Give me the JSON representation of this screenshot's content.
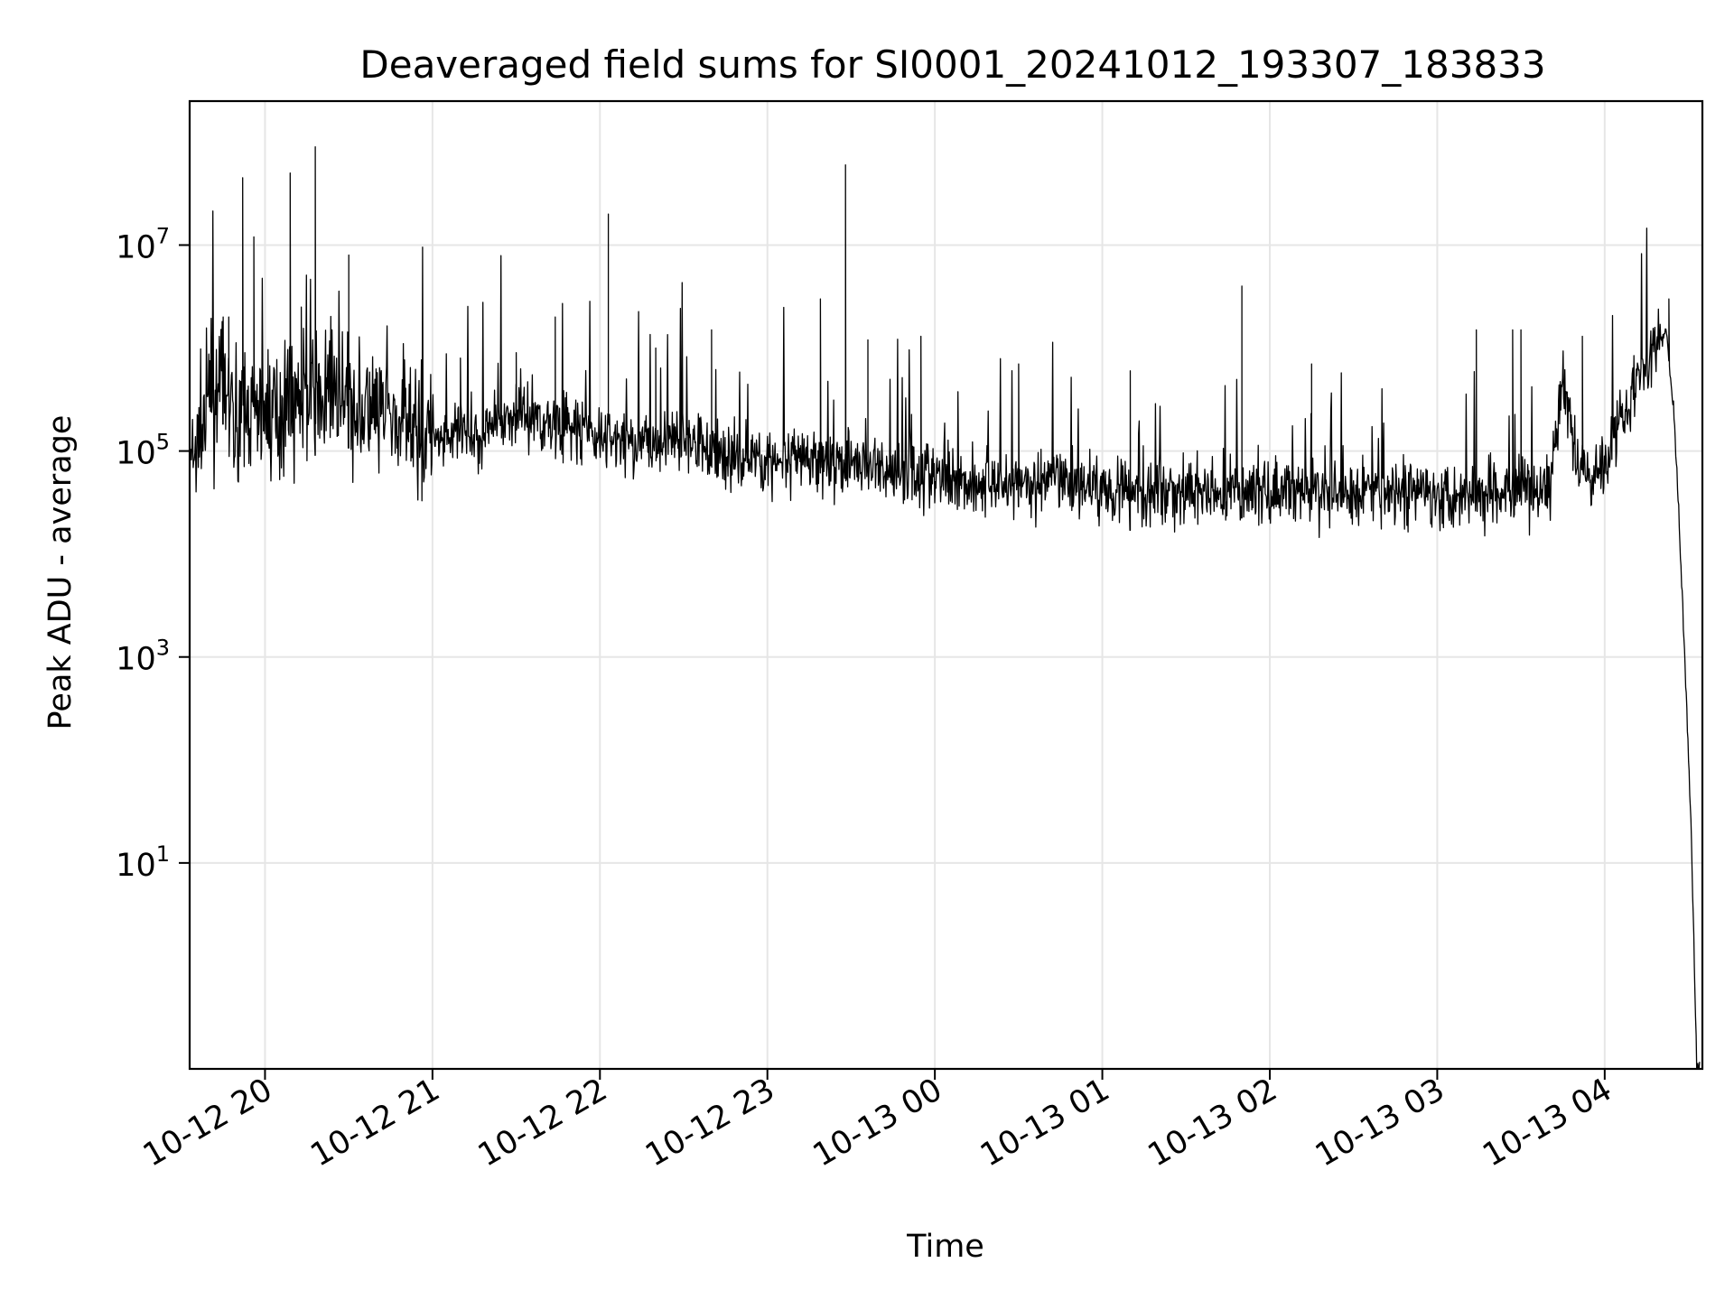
{
  "chart_data": {
    "type": "line",
    "title": "Deaveraged field sums for SI0001_20241012_193307_183833",
    "xlabel": "Time",
    "ylabel": "Peak ADU - average",
    "yscale": "log",
    "grid": true,
    "line_color": "#000000",
    "xlim": [
      "2024-10-12 19:33",
      "2024-10-13 04:35"
    ],
    "ylim": [
      0.1,
      250000000
    ],
    "x_ticks": [
      {
        "value": "2024-10-12 20:00",
        "label": "10-12 20"
      },
      {
        "value": "2024-10-12 21:00",
        "label": "10-12 21"
      },
      {
        "value": "2024-10-12 22:00",
        "label": "10-12 22"
      },
      {
        "value": "2024-10-12 23:00",
        "label": "10-12 23"
      },
      {
        "value": "2024-10-13 00:00",
        "label": "10-13 00"
      },
      {
        "value": "2024-10-13 01:00",
        "label": "10-13 01"
      },
      {
        "value": "2024-10-13 02:00",
        "label": "10-13 02"
      },
      {
        "value": "2024-10-13 03:00",
        "label": "10-13 03"
      },
      {
        "value": "2024-10-13 04:00",
        "label": "10-13 04"
      }
    ],
    "y_ticks": [
      {
        "value": 10,
        "base": "10",
        "exp": "1"
      },
      {
        "value": 1000,
        "base": "10",
        "exp": "3"
      },
      {
        "value": 100000,
        "base": "10",
        "exp": "5"
      },
      {
        "value": 10000000,
        "base": "10",
        "exp": "7"
      }
    ],
    "series": [
      {
        "x": [
          "2024-10-12 19:33",
          "2024-10-12 19:40",
          "2024-10-12 19:45",
          "2024-10-12 19:50",
          "2024-10-12 19:55",
          "2024-10-12 20:00",
          "2024-10-12 20:10",
          "2024-10-12 20:20",
          "2024-10-12 20:30",
          "2024-10-12 20:40",
          "2024-10-12 20:50",
          "2024-10-12 21:00",
          "2024-10-12 21:15",
          "2024-10-12 21:30",
          "2024-10-12 21:45",
          "2024-10-12 22:00",
          "2024-10-12 22:15",
          "2024-10-12 22:30",
          "2024-10-12 22:45",
          "2024-10-12 23:00",
          "2024-10-12 23:20",
          "2024-10-12 23:40",
          "2024-10-13 00:00",
          "2024-10-13 00:20",
          "2024-10-13 00:40",
          "2024-10-13 01:00",
          "2024-10-13 01:20",
          "2024-10-13 01:40",
          "2024-10-13 02:00",
          "2024-10-13 02:20",
          "2024-10-13 02:40",
          "2024-10-13 03:00",
          "2024-10-13 03:20",
          "2024-10-13 03:40",
          "2024-10-13 03:45",
          "2024-10-13 03:50",
          "2024-10-13 03:55",
          "2024-10-13 04:00",
          "2024-10-13 04:05",
          "2024-10-13 04:10",
          "2024-10-13 04:15",
          "2024-10-13 04:20",
          "2024-10-13 04:22",
          "2024-10-13 04:25",
          "2024-10-13 04:28",
          "2024-10-13 04:31",
          "2024-10-13 04:33",
          "2024-10-13 04:34"
        ],
        "y": [
          60000,
          300000,
          400000,
          200000,
          250000,
          200000,
          300000,
          350000,
          250000,
          200000,
          180000,
          150000,
          130000,
          250000,
          180000,
          130000,
          120000,
          130000,
          90000,
          80000,
          80000,
          70000,
          55000,
          50000,
          50000,
          45000,
          40000,
          40000,
          40000,
          40000,
          40000,
          40000,
          40000,
          40000,
          500000,
          70000,
          60000,
          80000,
          200000,
          400000,
          700000,
          1200000,
          1500000,
          200000,
          3000,
          20,
          0.1,
          0.1
        ]
      }
    ],
    "spikes": [
      {
        "x": "2024-10-12 19:45",
        "y": 2000000
      },
      {
        "x": "2024-10-12 19:47",
        "y": 2000000
      },
      {
        "x": "2024-10-12 19:52",
        "y": 45000000
      },
      {
        "x": "2024-10-12 19:56",
        "y": 12000000
      },
      {
        "x": "2024-10-12 20:09",
        "y": 50000000
      },
      {
        "x": "2024-10-12 20:13",
        "y": 2500000
      },
      {
        "x": "2024-10-12 20:18",
        "y": 90000000
      },
      {
        "x": "2024-10-12 20:24",
        "y": 1500000
      },
      {
        "x": "2024-10-12 20:30",
        "y": 8000000
      },
      {
        "x": "2024-10-12 21:10",
        "y": 800000
      },
      {
        "x": "2024-10-12 21:30",
        "y": 900000
      },
      {
        "x": "2024-10-12 21:44",
        "y": 2000000
      },
      {
        "x": "2024-10-12 22:03",
        "y": 20000000
      },
      {
        "x": "2024-10-12 22:20",
        "y": 1000000
      },
      {
        "x": "2024-10-12 22:40",
        "y": 1500000
      },
      {
        "x": "2024-10-12 23:19",
        "y": 3000000
      },
      {
        "x": "2024-10-12 23:28",
        "y": 60000000
      },
      {
        "x": "2024-10-12 23:36",
        "y": 1200000
      },
      {
        "x": "2024-10-12 23:55",
        "y": 1300000
      },
      {
        "x": "2024-10-13 00:30",
        "y": 700000
      },
      {
        "x": "2024-10-13 01:10",
        "y": 600000
      },
      {
        "x": "2024-10-13 01:50",
        "y": 4000000
      },
      {
        "x": "2024-10-13 02:15",
        "y": 700000
      },
      {
        "x": "2024-10-13 03:14",
        "y": 1500000
      },
      {
        "x": "2024-10-13 03:27",
        "y": 1500000
      },
      {
        "x": "2024-10-13 03:30",
        "y": 1500000
      },
      {
        "x": "2024-10-13 03:52",
        "y": 1300000
      },
      {
        "x": "2024-10-13 04:23",
        "y": 3000000
      }
    ]
  }
}
